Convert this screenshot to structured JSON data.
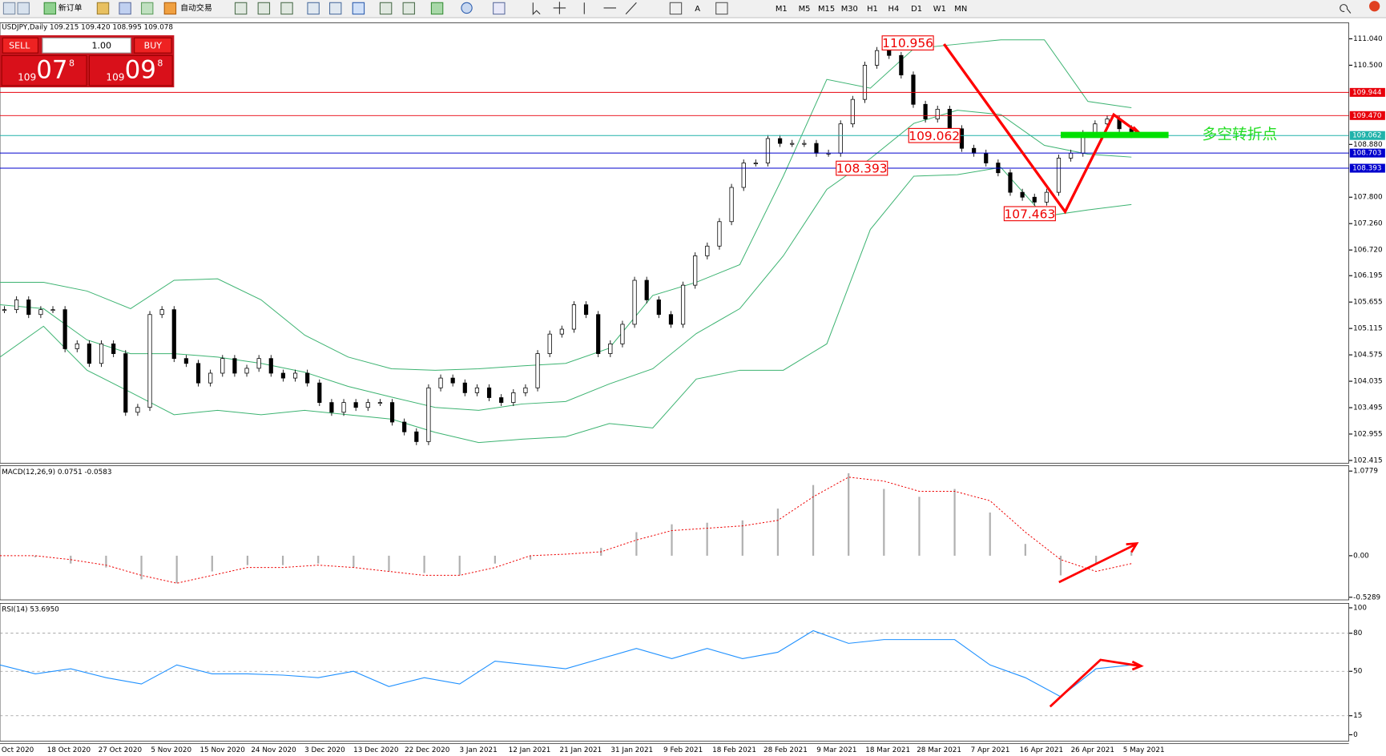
{
  "toolbar": {
    "new_order": "新订单",
    "auto_trading": "自动交易",
    "timeframes": [
      "M1",
      "M5",
      "M15",
      "M30",
      "H1",
      "H4",
      "D1",
      "W1",
      "MN"
    ]
  },
  "trade_panel": {
    "sell": "SELL",
    "lot": "1.00",
    "buy": "BUY",
    "bid": {
      "big": "109",
      "main": "07",
      "small": "8"
    },
    "ask": {
      "big": "109",
      "main": "09",
      "small": "8"
    }
  },
  "chart_data": [
    {
      "type": "candlestick",
      "title": "USDJPY,Daily 109.215 109.420 108.995 109.078",
      "dates": [
        "Oct 2020",
        "18 Oct 2020",
        "27 Oct 2020",
        "5 Nov 2020",
        "15 Nov 2020",
        "24 Nov 2020",
        "3 Dec 2020",
        "13 Dec 2020",
        "22 Dec 2020",
        "3 Jan 2021",
        "12 Jan 2021",
        "21 Jan 2021",
        "31 Jan 2021",
        "9 Feb 2021",
        "18 Feb 2021",
        "28 Feb 2021",
        "9 Mar 2021",
        "18 Mar 2021",
        "28 Mar 2021",
        "7 Apr 2021",
        "16 Apr 2021",
        "26 Apr 2021",
        "5 May 2021"
      ],
      "closes": [
        105.5,
        105.7,
        105.4,
        105.5,
        105.5,
        104.7,
        104.8,
        104.4,
        104.8,
        104.6,
        103.4,
        103.5,
        105.4,
        105.5,
        104.5,
        104.4,
        104.0,
        104.2,
        104.5,
        104.2,
        104.3,
        104.5,
        104.2,
        104.1,
        104.2,
        104.0,
        103.6,
        103.4,
        103.6,
        103.5,
        103.6,
        103.6,
        103.2,
        103.0,
        102.8,
        103.9,
        104.1,
        104.0,
        103.8,
        103.9,
        103.7,
        103.6,
        103.8,
        103.9,
        104.6,
        105.0,
        105.1,
        105.6,
        105.4,
        104.6,
        104.8,
        105.2,
        106.1,
        105.7,
        105.4,
        105.2,
        106.0,
        106.6,
        106.8,
        107.3,
        108.0,
        108.5,
        108.5,
        109.0,
        108.9,
        108.9,
        108.9,
        108.7,
        108.7,
        109.3,
        109.8,
        110.5,
        110.8,
        110.7,
        110.3,
        109.7,
        109.4,
        109.6,
        109.2,
        108.8,
        108.7,
        108.5,
        108.3,
        107.9,
        107.8,
        107.7,
        107.9,
        108.6,
        108.7,
        109.1,
        109.3,
        109.4,
        109.2,
        109.1
      ],
      "bands": {
        "color": "#3cb371",
        "upper": [
          106.06,
          106.06,
          105.88,
          105.52,
          106.1,
          106.13,
          105.7,
          104.98,
          104.53,
          104.29,
          104.26,
          104.29,
          104.35,
          104.4,
          104.71,
          105.79,
          106.06,
          106.42,
          108.23,
          110.21,
          110.03,
          110.84,
          110.93,
          111.02,
          111.02,
          109.76,
          109.63
        ],
        "middle": [
          105.6,
          105.52,
          104.88,
          104.6,
          104.6,
          104.53,
          104.4,
          104.22,
          103.93,
          103.71,
          103.5,
          103.44,
          103.57,
          103.62,
          103.98,
          104.29,
          105.01,
          105.52,
          106.6,
          107.96,
          108.59,
          109.31,
          109.58,
          109.49,
          108.86,
          108.68,
          108.62
        ],
        "lower": [
          104.53,
          105.16,
          104.26,
          103.81,
          103.35,
          103.44,
          103.35,
          103.44,
          103.35,
          103.26,
          102.99,
          102.78,
          102.85,
          102.9,
          103.17,
          103.08,
          104.08,
          104.26,
          104.26,
          104.8,
          107.14,
          108.23,
          108.26,
          108.41,
          107.41,
          107.54,
          107.65
        ]
      },
      "ylim": [
        102.36,
        111.365
      ],
      "yticks": [
        {
          "value": 111.04,
          "label": "111.040"
        },
        {
          "value": 110.5,
          "label": "110.500"
        },
        {
          "value": 108.88,
          "label": "108.880"
        },
        {
          "value": 107.8,
          "label": "107.800"
        },
        {
          "value": 107.26,
          "label": "107.260"
        },
        {
          "value": 106.72,
          "label": "106.720"
        },
        {
          "value": 106.195,
          "label": "106.195"
        },
        {
          "value": 105.655,
          "label": "105.655"
        },
        {
          "value": 105.115,
          "label": "105.115"
        },
        {
          "value": 104.575,
          "label": "104.575"
        },
        {
          "value": 104.035,
          "label": "104.035"
        },
        {
          "value": 103.495,
          "label": "103.495"
        },
        {
          "value": 102.955,
          "label": "102.955"
        },
        {
          "value": 102.415,
          "label": "102.415"
        }
      ],
      "levels": [
        {
          "value": 109.944,
          "label": "109.944",
          "color": "#e8000b"
        },
        {
          "value": 109.47,
          "label": "109.470",
          "color": "#e8000b"
        },
        {
          "value": 109.062,
          "label": "109.062",
          "color": "#20b2aa"
        },
        {
          "value": 108.703,
          "label": "108.703",
          "color": "#0000cd"
        },
        {
          "value": 108.393,
          "label": "108.393",
          "color": "#0000cd"
        }
      ],
      "annotations": [
        110.956,
        109.062,
        108.393,
        107.463
      ],
      "note": "多空转折点"
    },
    {
      "type": "macd",
      "title": "MACD(12,26,9) 0.0751 -0.0583",
      "ylim": [
        -0.562,
        1.145
      ],
      "yticks": [
        1.0779,
        {
          "value": 0,
          "label": "0.00"
        },
        -0.5289
      ],
      "histogram": [
        0,
        -0.02,
        -0.1,
        -0.15,
        -0.3,
        -0.35,
        -0.2,
        -0.12,
        -0.12,
        -0.1,
        -0.15,
        -0.2,
        -0.22,
        -0.25,
        -0.1,
        -0.05,
        0,
        0.1,
        0.3,
        0.4,
        0.42,
        0.45,
        0.6,
        0.9,
        1.05,
        0.85,
        0.75,
        0.85,
        0.55,
        0.15,
        -0.25,
        -0.1,
        0.05
      ],
      "signal": [
        0,
        0,
        -0.05,
        -0.12,
        -0.25,
        -0.35,
        -0.25,
        -0.15,
        -0.15,
        -0.12,
        -0.15,
        -0.2,
        -0.25,
        -0.25,
        -0.15,
        0,
        0.02,
        0.05,
        0.2,
        0.32,
        0.35,
        0.38,
        0.45,
        0.75,
        1.0,
        0.95,
        0.82,
        0.82,
        0.7,
        0.3,
        -0.05,
        -0.2,
        -0.1
      ]
    },
    {
      "type": "line",
      "title": "RSI(14) 53.6950",
      "ylim": [
        -4.9,
        103.5
      ],
      "yticks": [
        100,
        80,
        50,
        15,
        0
      ],
      "levels": [
        80,
        50,
        15
      ],
      "color": "#1e90ff",
      "values": [
        55,
        48,
        52,
        45,
        40,
        55,
        48,
        48,
        47,
        45,
        50,
        38,
        45,
        40,
        58,
        55,
        52,
        60,
        68,
        60,
        68,
        60,
        65,
        82,
        72,
        75,
        75,
        75,
        55,
        45,
        30,
        52,
        55
      ]
    }
  ]
}
